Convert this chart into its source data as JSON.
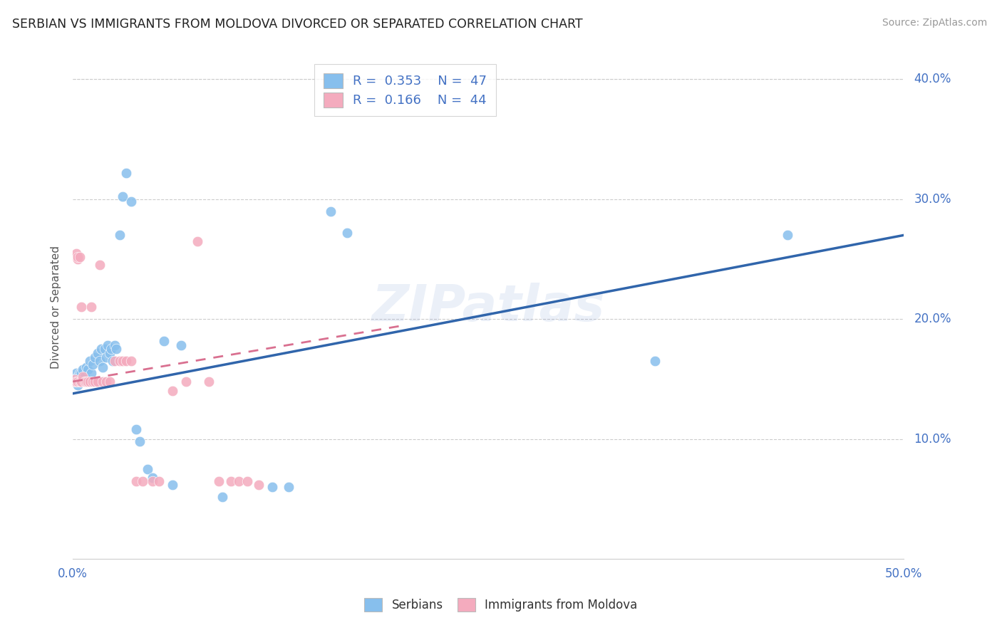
{
  "title": "SERBIAN VS IMMIGRANTS FROM MOLDOVA DIVORCED OR SEPARATED CORRELATION CHART",
  "source": "Source: ZipAtlas.com",
  "ylabel": "Divorced or Separated",
  "xlim": [
    0.0,
    0.5
  ],
  "ylim": [
    0.0,
    0.42
  ],
  "legend_labels": [
    "Serbians",
    "Immigrants from Moldova"
  ],
  "r_serbian": 0.353,
  "n_serbian": 47,
  "r_moldova": 0.166,
  "n_moldova": 44,
  "watermark": "ZIPatlas",
  "serbian_color": "#87BFED",
  "moldova_color": "#F4ABBE",
  "serbian_line_color": "#3065AB",
  "moldova_line_color": "#D97090",
  "tick_color": "#4472C4",
  "serbian_points_x": [
    0.002,
    0.002,
    0.003,
    0.003,
    0.003,
    0.004,
    0.004,
    0.005,
    0.005,
    0.006,
    0.007,
    0.008,
    0.009,
    0.01,
    0.011,
    0.012,
    0.013,
    0.015,
    0.016,
    0.017,
    0.018,
    0.019,
    0.02,
    0.021,
    0.022,
    0.023,
    0.024,
    0.025,
    0.026,
    0.028,
    0.03,
    0.032,
    0.035,
    0.038,
    0.04,
    0.045,
    0.048,
    0.055,
    0.06,
    0.065,
    0.09,
    0.12,
    0.13,
    0.155,
    0.165,
    0.35,
    0.43
  ],
  "serbian_points_y": [
    0.155,
    0.15,
    0.152,
    0.148,
    0.145,
    0.155,
    0.148,
    0.155,
    0.15,
    0.158,
    0.152,
    0.16,
    0.158,
    0.165,
    0.155,
    0.162,
    0.168,
    0.172,
    0.165,
    0.175,
    0.16,
    0.175,
    0.168,
    0.178,
    0.172,
    0.175,
    0.165,
    0.178,
    0.175,
    0.27,
    0.302,
    0.322,
    0.298,
    0.108,
    0.098,
    0.075,
    0.068,
    0.182,
    0.062,
    0.178,
    0.052,
    0.06,
    0.06,
    0.29,
    0.272,
    0.165,
    0.27
  ],
  "moldova_points_x": [
    0.001,
    0.001,
    0.002,
    0.002,
    0.002,
    0.003,
    0.003,
    0.003,
    0.004,
    0.004,
    0.005,
    0.005,
    0.005,
    0.006,
    0.007,
    0.008,
    0.009,
    0.01,
    0.011,
    0.012,
    0.013,
    0.015,
    0.016,
    0.018,
    0.02,
    0.022,
    0.025,
    0.028,
    0.03,
    0.032,
    0.035,
    0.038,
    0.042,
    0.048,
    0.052,
    0.06,
    0.068,
    0.075,
    0.082,
    0.088,
    0.095,
    0.1,
    0.105,
    0.112
  ],
  "moldova_points_y": [
    0.148,
    0.15,
    0.148,
    0.252,
    0.255,
    0.148,
    0.25,
    0.252,
    0.148,
    0.252,
    0.148,
    0.148,
    0.21,
    0.152,
    0.148,
    0.148,
    0.148,
    0.148,
    0.21,
    0.148,
    0.148,
    0.148,
    0.245,
    0.148,
    0.148,
    0.148,
    0.165,
    0.165,
    0.165,
    0.165,
    0.165,
    0.065,
    0.065,
    0.065,
    0.065,
    0.14,
    0.148,
    0.265,
    0.148,
    0.065,
    0.065,
    0.065,
    0.065,
    0.062
  ],
  "serbian_line_x": [
    0.0,
    0.5
  ],
  "serbian_line_y": [
    0.138,
    0.27
  ],
  "moldova_line_x": [
    0.0,
    0.2
  ],
  "moldova_line_y": [
    0.148,
    0.195
  ]
}
